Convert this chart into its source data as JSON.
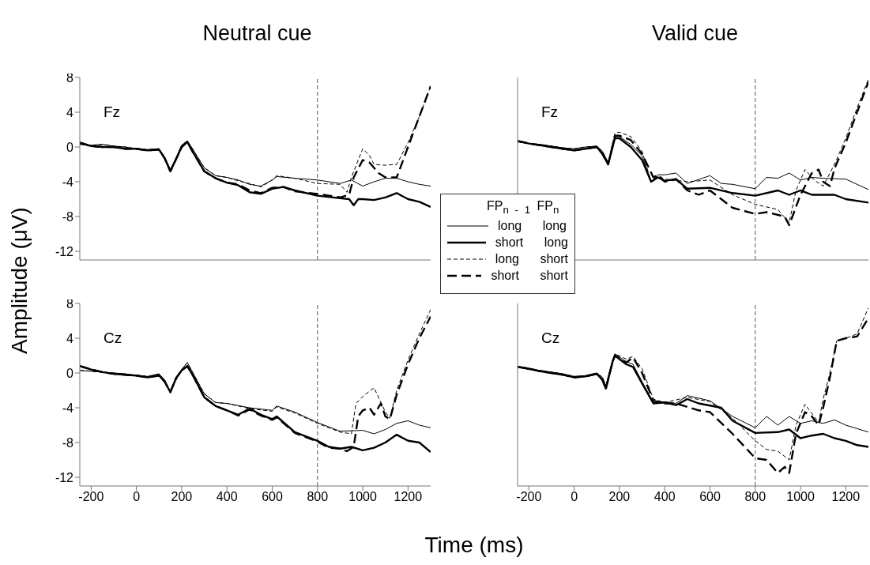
{
  "chart_data": [
    {
      "type": "line",
      "title": "Neutral cue",
      "ylabel": "Amplitude (μV)",
      "annotations": [
        "Fz"
      ],
      "xlim": [
        -250,
        1300
      ],
      "ylim": [
        -13,
        8
      ],
      "xticks": [
        -200,
        0,
        200,
        400,
        600,
        800,
        1000,
        1200
      ],
      "yticks": [
        -12,
        -8,
        -4,
        0,
        4,
        8
      ],
      "tick_labels": "y",
      "marker": "none",
      "ref_lines": [
        {
          "axis": "x",
          "value": 800,
          "color": "#555555",
          "line_style": "dashed"
        }
      ],
      "series": [
        {
          "color": "#000000",
          "line_style": "solid",
          "x": [
            -250,
            -200,
            -150,
            -100,
            -50,
            0,
            50,
            100,
            125,
            150,
            175,
            200,
            225,
            250,
            300,
            350,
            400,
            450,
            500,
            550,
            600,
            620,
            700,
            800,
            900,
            950,
            1000,
            1050,
            1100,
            1150,
            1200,
            1250,
            1300
          ],
          "values": [
            0.3,
            0.2,
            0.3,
            0.1,
            0,
            -0.2,
            -0.3,
            -0.2,
            -1.2,
            -2.6,
            -1.3,
            0.2,
            0.7,
            -0.3,
            -2.4,
            -3.3,
            -3.5,
            -3.8,
            -4.3,
            -4.5,
            -3.8,
            -3.4,
            -3.6,
            -3.8,
            -4.2,
            -3.8,
            -4.5,
            -4.0,
            -3.6,
            -3.6,
            -4.0,
            -4.3,
            -4.5
          ]
        },
        {
          "color": "#000000",
          "line_style": "solid",
          "x": [
            -250,
            -200,
            -150,
            -100,
            -50,
            0,
            50,
            100,
            125,
            150,
            175,
            200,
            225,
            250,
            300,
            350,
            400,
            450,
            500,
            550,
            600,
            650,
            700,
            800,
            900,
            940,
            960,
            980,
            1000,
            1050,
            1100,
            1150,
            1200,
            1250,
            1300
          ],
          "values": [
            0.5,
            0.1,
            0.0,
            0.0,
            -0.2,
            -0.2,
            -0.4,
            -0.3,
            -1.3,
            -2.8,
            -1.4,
            0.0,
            0.6,
            -0.6,
            -2.8,
            -3.6,
            -4.1,
            -4.4,
            -5.2,
            -5.4,
            -4.8,
            -4.6,
            -5.0,
            -5.6,
            -5.9,
            -6.0,
            -6.7,
            -6.0,
            -6.0,
            -6.1,
            -5.8,
            -5.3,
            -6.0,
            -6.3,
            -6.9
          ]
        },
        {
          "color": "#000000",
          "line_style": "dashed",
          "x": [
            -250,
            -200,
            -150,
            -100,
            -50,
            0,
            50,
            100,
            125,
            150,
            175,
            200,
            225,
            250,
            300,
            350,
            400,
            450,
            500,
            550,
            600,
            620,
            700,
            800,
            900,
            930,
            950,
            980,
            1000,
            1030,
            1050,
            1100,
            1150,
            1200,
            1250,
            1300
          ],
          "values": [
            0.3,
            0.2,
            0.3,
            0.1,
            0,
            -0.2,
            -0.3,
            -0.2,
            -1.2,
            -2.6,
            -1.3,
            0.2,
            0.7,
            -0.3,
            -2.4,
            -3.3,
            -3.5,
            -3.9,
            -4.2,
            -4.6,
            -3.8,
            -3.3,
            -3.6,
            -4.2,
            -4.3,
            -5.2,
            -3.5,
            -1.5,
            -0.2,
            -1.0,
            -2.0,
            -2.1,
            -2.0,
            0.5,
            3.5,
            7.0
          ]
        },
        {
          "color": "#000000",
          "line_style": "dashed",
          "x": [
            -250,
            -200,
            -150,
            -100,
            -50,
            0,
            50,
            100,
            125,
            150,
            175,
            200,
            225,
            250,
            300,
            350,
            400,
            450,
            500,
            550,
            600,
            650,
            700,
            800,
            900,
            940,
            960,
            1000,
            1030,
            1070,
            1100,
            1150,
            1200,
            1250,
            1300
          ],
          "values": [
            0.5,
            0.1,
            0.0,
            0.0,
            -0.2,
            -0.2,
            -0.4,
            -0.3,
            -1.3,
            -2.8,
            -1.4,
            0.0,
            0.6,
            -0.6,
            -2.8,
            -3.6,
            -4.1,
            -4.3,
            -5.0,
            -5.3,
            -4.7,
            -4.6,
            -5.1,
            -5.4,
            -5.8,
            -5.5,
            -3.5,
            -1.5,
            -1.8,
            -3.0,
            -3.5,
            -3.5,
            0.0,
            3.5,
            7.0
          ]
        }
      ]
    },
    {
      "type": "line",
      "title": "Valid cue",
      "annotations": [
        "Fz"
      ],
      "xlim": [
        -250,
        1300
      ],
      "ylim": [
        -13,
        8
      ],
      "xticks": [
        -200,
        0,
        200,
        400,
        600,
        800,
        1000,
        1200
      ],
      "yticks": [
        -12,
        -8,
        -4,
        0,
        4,
        8
      ],
      "tick_labels": false,
      "marker": "none",
      "legend": "left",
      "legend_title": "FP$_{n - 1}$ FP$_{n}$",
      "ref_lines": [
        {
          "axis": "x",
          "value": 800,
          "color": "#555555",
          "line_style": "dashed"
        }
      ],
      "series": [
        {
          "name": "long long",
          "color": "#000000",
          "line_style": "solid",
          "x": [
            -250,
            -200,
            -150,
            -100,
            -50,
            0,
            50,
            100,
            125,
            150,
            180,
            200,
            250,
            300,
            340,
            370,
            400,
            450,
            500,
            600,
            650,
            700,
            800,
            850,
            900,
            950,
            1000,
            1050,
            1100,
            1200,
            1250,
            1300
          ],
          "values": [
            0.6,
            0.4,
            0.3,
            0.1,
            -0.1,
            -0.2,
            0.0,
            0.1,
            -0.5,
            -1.8,
            1.2,
            1.2,
            0.3,
            -1.0,
            -4.0,
            -3.2,
            -3.2,
            -3.0,
            -4.2,
            -3.3,
            -4.2,
            -4.3,
            -4.8,
            -3.5,
            -3.6,
            -3.0,
            -3.8,
            -3.5,
            -3.6,
            -3.7,
            -4.3,
            -4.9
          ]
        },
        {
          "name": "short long",
          "color": "#000000",
          "line_style": "solid",
          "x": [
            -250,
            -200,
            -150,
            -100,
            -50,
            0,
            50,
            100,
            125,
            150,
            180,
            200,
            250,
            300,
            340,
            370,
            400,
            450,
            500,
            600,
            700,
            800,
            900,
            950,
            1000,
            1050,
            1150,
            1200,
            1300
          ],
          "values": [
            0.7,
            0.4,
            0.2,
            0.0,
            -0.2,
            -0.4,
            -0.2,
            0.0,
            -0.8,
            -2.0,
            1.0,
            1.0,
            0.0,
            -1.5,
            -4.0,
            -3.5,
            -3.9,
            -3.7,
            -4.8,
            -4.7,
            -5.3,
            -5.6,
            -5.0,
            -5.5,
            -5.0,
            -5.5,
            -5.5,
            -6.0,
            -6.4
          ]
        },
        {
          "name": "long short",
          "color": "#000000",
          "line_style": "dashed",
          "x": [
            -250,
            -200,
            -150,
            -100,
            -50,
            0,
            50,
            100,
            125,
            150,
            180,
            200,
            250,
            300,
            340,
            370,
            400,
            500,
            600,
            700,
            800,
            900,
            950,
            980,
            1020,
            1060,
            1100,
            1150,
            1200,
            1250,
            1300
          ],
          "values": [
            0.6,
            0.4,
            0.3,
            0.1,
            -0.1,
            -0.2,
            0.0,
            0.1,
            -0.5,
            -1.8,
            1.6,
            1.7,
            1.2,
            -0.5,
            -4.0,
            -3.3,
            -3.7,
            -4.0,
            -3.8,
            -5.5,
            -6.6,
            -7.2,
            -8.7,
            -5.0,
            -2.6,
            -3.8,
            -4.5,
            -2.0,
            1.0,
            4.5,
            7.8
          ]
        },
        {
          "name": "short short",
          "color": "#000000",
          "line_style": "dashed",
          "x": [
            -250,
            -200,
            -150,
            -100,
            -50,
            0,
            50,
            100,
            125,
            150,
            180,
            200,
            250,
            300,
            350,
            370,
            400,
            450,
            500,
            550,
            600,
            650,
            700,
            800,
            850,
            930,
            950,
            1000,
            1050,
            1080,
            1100,
            1130,
            1150,
            1200,
            1250,
            1300
          ],
          "values": [
            0.7,
            0.4,
            0.2,
            0.0,
            -0.2,
            -0.4,
            -0.2,
            0.0,
            -0.8,
            -2.0,
            1.3,
            1.3,
            0.8,
            -0.8,
            -3.5,
            -3.2,
            -4.0,
            -3.7,
            -5.0,
            -5.5,
            -5.0,
            -6.0,
            -7.0,
            -7.7,
            -7.5,
            -8.0,
            -9.0,
            -5.5,
            -3.0,
            -2.6,
            -4.0,
            -4.5,
            -2.5,
            0.5,
            4.0,
            7.5
          ]
        }
      ]
    },
    {
      "type": "line",
      "xlabel": "Time (ms)",
      "annotations": [
        "Cz"
      ],
      "xlim": [
        -250,
        1300
      ],
      "ylim": [
        -13,
        8
      ],
      "xticks": [
        -200,
        0,
        200,
        400,
        600,
        800,
        1000,
        1200
      ],
      "yticks": [
        -12,
        -8,
        -4,
        0,
        4,
        8
      ],
      "marker": "none",
      "ref_lines": [
        {
          "axis": "x",
          "value": 800,
          "color": "#555555",
          "line_style": "dashed"
        }
      ],
      "series": [
        {
          "color": "#000000",
          "line_style": "solid",
          "x": [
            -250,
            -200,
            -150,
            -100,
            -50,
            0,
            50,
            100,
            125,
            150,
            175,
            200,
            225,
            250,
            300,
            350,
            400,
            500,
            600,
            620,
            700,
            800,
            850,
            900,
            1000,
            1050,
            1100,
            1150,
            1200,
            1250,
            1300
          ],
          "values": [
            0.3,
            0.2,
            0.1,
            0.0,
            -0.1,
            -0.3,
            -0.4,
            -0.1,
            -0.8,
            -2.2,
            -0.8,
            0.4,
            1.2,
            0.0,
            -2.4,
            -3.4,
            -3.5,
            -4.0,
            -4.3,
            -3.8,
            -4.5,
            -5.7,
            -6.2,
            -6.7,
            -6.6,
            -7.0,
            -6.5,
            -5.8,
            -5.5,
            -6.0,
            -6.3
          ]
        },
        {
          "color": "#000000",
          "line_style": "solid",
          "x": [
            -250,
            -200,
            -150,
            -100,
            -50,
            0,
            50,
            100,
            125,
            150,
            175,
            200,
            225,
            250,
            300,
            350,
            400,
            450,
            500,
            550,
            600,
            620,
            700,
            800,
            850,
            900,
            950,
            1000,
            1050,
            1100,
            1150,
            1200,
            1250,
            1300
          ],
          "values": [
            0.8,
            0.4,
            0.1,
            -0.1,
            -0.2,
            -0.3,
            -0.5,
            -0.3,
            -1.0,
            -2.2,
            -0.6,
            0.3,
            0.8,
            -0.3,
            -2.8,
            -3.8,
            -4.3,
            -4.8,
            -4.1,
            -4.8,
            -5.3,
            -5.0,
            -6.8,
            -7.8,
            -8.5,
            -8.7,
            -8.5,
            -8.9,
            -8.6,
            -8.0,
            -7.1,
            -7.8,
            -8.0,
            -9.1
          ]
        },
        {
          "color": "#000000",
          "line_style": "dashed",
          "x": [
            -250,
            -200,
            -150,
            -100,
            -50,
            0,
            50,
            100,
            125,
            150,
            175,
            200,
            225,
            250,
            300,
            350,
            400,
            500,
            600,
            620,
            700,
            800,
            850,
            900,
            950,
            970,
            1000,
            1050,
            1100,
            1120,
            1150,
            1200,
            1250,
            1300
          ],
          "values": [
            0.3,
            0.2,
            0.1,
            0.0,
            -0.1,
            -0.3,
            -0.4,
            -0.1,
            -0.8,
            -2.2,
            -0.8,
            0.4,
            1.2,
            0.0,
            -2.4,
            -3.4,
            -3.5,
            -4.1,
            -4.4,
            -3.9,
            -4.6,
            -5.8,
            -6.3,
            -6.8,
            -7.0,
            -3.5,
            -2.7,
            -1.7,
            -4.5,
            -5.2,
            -2.0,
            1.5,
            4.5,
            7.3
          ]
        },
        {
          "color": "#000000",
          "line_style": "dashed",
          "x": [
            -250,
            -200,
            -150,
            -100,
            -50,
            0,
            50,
            100,
            125,
            150,
            175,
            200,
            225,
            250,
            300,
            350,
            400,
            450,
            500,
            550,
            600,
            620,
            700,
            800,
            850,
            900,
            930,
            960,
            980,
            1000,
            1030,
            1050,
            1080,
            1100,
            1120,
            1150,
            1200,
            1250,
            1300
          ],
          "values": [
            0.8,
            0.4,
            0.1,
            -0.1,
            -0.2,
            -0.3,
            -0.5,
            -0.3,
            -1.0,
            -2.2,
            -0.6,
            0.3,
            0.8,
            -0.3,
            -2.8,
            -3.8,
            -4.3,
            -4.9,
            -4.2,
            -4.9,
            -5.4,
            -5.1,
            -6.9,
            -7.9,
            -8.6,
            -8.7,
            -9.0,
            -8.5,
            -5.0,
            -4.3,
            -4.0,
            -4.8,
            -3.5,
            -5.0,
            -5.3,
            -2.5,
            1.0,
            4.0,
            6.5
          ]
        }
      ]
    },
    {
      "type": "line",
      "annotations": [
        "Cz"
      ],
      "xlim": [
        -250,
        1300
      ],
      "ylim": [
        -13,
        8
      ],
      "xticks": [
        -200,
        0,
        200,
        400,
        600,
        800,
        1000,
        1200
      ],
      "yticks": [
        -12,
        -8,
        -4,
        0,
        4,
        8
      ],
      "tick_labels": "x",
      "marker": "none",
      "ref_lines": [
        {
          "axis": "x",
          "value": 800,
          "color": "#555555",
          "line_style": "dashed"
        }
      ],
      "series": [
        {
          "color": "#000000",
          "line_style": "solid",
          "x": [
            -250,
            -200,
            -150,
            -100,
            -50,
            0,
            50,
            100,
            125,
            140,
            170,
            180,
            230,
            260,
            300,
            350,
            400,
            450,
            500,
            600,
            700,
            800,
            850,
            900,
            950,
            1000,
            1050,
            1100,
            1150,
            1200,
            1300
          ],
          "values": [
            0.7,
            0.4,
            0.3,
            0.1,
            -0.1,
            -0.4,
            -0.3,
            0.0,
            -0.5,
            -1.5,
            1.5,
            2.2,
            1.3,
            1.0,
            -1.0,
            -3.4,
            -3.3,
            -3.5,
            -2.6,
            -3.2,
            -5.0,
            -6.3,
            -5.0,
            -6.0,
            -5.0,
            -5.8,
            -5.5,
            -5.8,
            -5.4,
            -6.0,
            -6.8
          ]
        },
        {
          "color": "#000000",
          "line_style": "solid",
          "x": [
            -250,
            -200,
            -150,
            -100,
            -50,
            0,
            50,
            100,
            125,
            140,
            170,
            180,
            230,
            260,
            300,
            350,
            400,
            450,
            500,
            550,
            650,
            700,
            800,
            900,
            950,
            1000,
            1050,
            1100,
            1150,
            1200,
            1250,
            1300
          ],
          "values": [
            0.7,
            0.5,
            0.2,
            0.0,
            -0.2,
            -0.5,
            -0.4,
            -0.1,
            -0.8,
            -1.8,
            1.3,
            2.0,
            1.0,
            0.7,
            -1.2,
            -3.5,
            -3.4,
            -3.7,
            -3.0,
            -3.5,
            -4.0,
            -5.5,
            -6.9,
            -6.8,
            -6.5,
            -7.5,
            -7.2,
            -7.0,
            -7.5,
            -7.8,
            -8.3,
            -8.5
          ]
        },
        {
          "color": "#000000",
          "line_style": "dashed",
          "x": [
            -250,
            -200,
            -150,
            -100,
            -50,
            0,
            50,
            100,
            125,
            140,
            170,
            180,
            230,
            260,
            300,
            350,
            400,
            500,
            600,
            700,
            800,
            850,
            900,
            950,
            980,
            1020,
            1060,
            1080,
            1100,
            1130,
            1160,
            1200,
            1250,
            1300
          ],
          "values": [
            0.7,
            0.4,
            0.3,
            0.1,
            -0.1,
            -0.4,
            -0.3,
            0.0,
            -0.5,
            -1.5,
            1.5,
            2.2,
            1.6,
            1.9,
            0.5,
            -3.0,
            -3.4,
            -2.8,
            -3.3,
            -5.2,
            -7.8,
            -8.8,
            -9.0,
            -10.0,
            -6.0,
            -3.6,
            -5.0,
            -5.7,
            -3.0,
            0.0,
            3.7,
            4.0,
            4.5,
            7.5
          ]
        },
        {
          "color": "#000000",
          "line_style": "dashed",
          "x": [
            -250,
            -200,
            -150,
            -100,
            -50,
            0,
            50,
            100,
            125,
            140,
            170,
            180,
            230,
            260,
            300,
            350,
            400,
            450,
            550,
            600,
            700,
            800,
            850,
            900,
            930,
            950,
            980,
            1020,
            1050,
            1080,
            1100,
            1130,
            1160,
            1200,
            1250,
            1300
          ],
          "values": [
            0.7,
            0.5,
            0.2,
            0.0,
            -0.2,
            -0.5,
            -0.4,
            -0.1,
            -0.8,
            -1.8,
            1.3,
            2.0,
            1.2,
            1.8,
            0.0,
            -3.2,
            -3.5,
            -3.5,
            -4.3,
            -4.5,
            -7.0,
            -9.8,
            -10.0,
            -11.5,
            -10.8,
            -11.5,
            -7.0,
            -4.5,
            -5.0,
            -6.0,
            -4.0,
            -0.5,
            3.7,
            4.0,
            4.2,
            6.3
          ]
        }
      ]
    }
  ]
}
